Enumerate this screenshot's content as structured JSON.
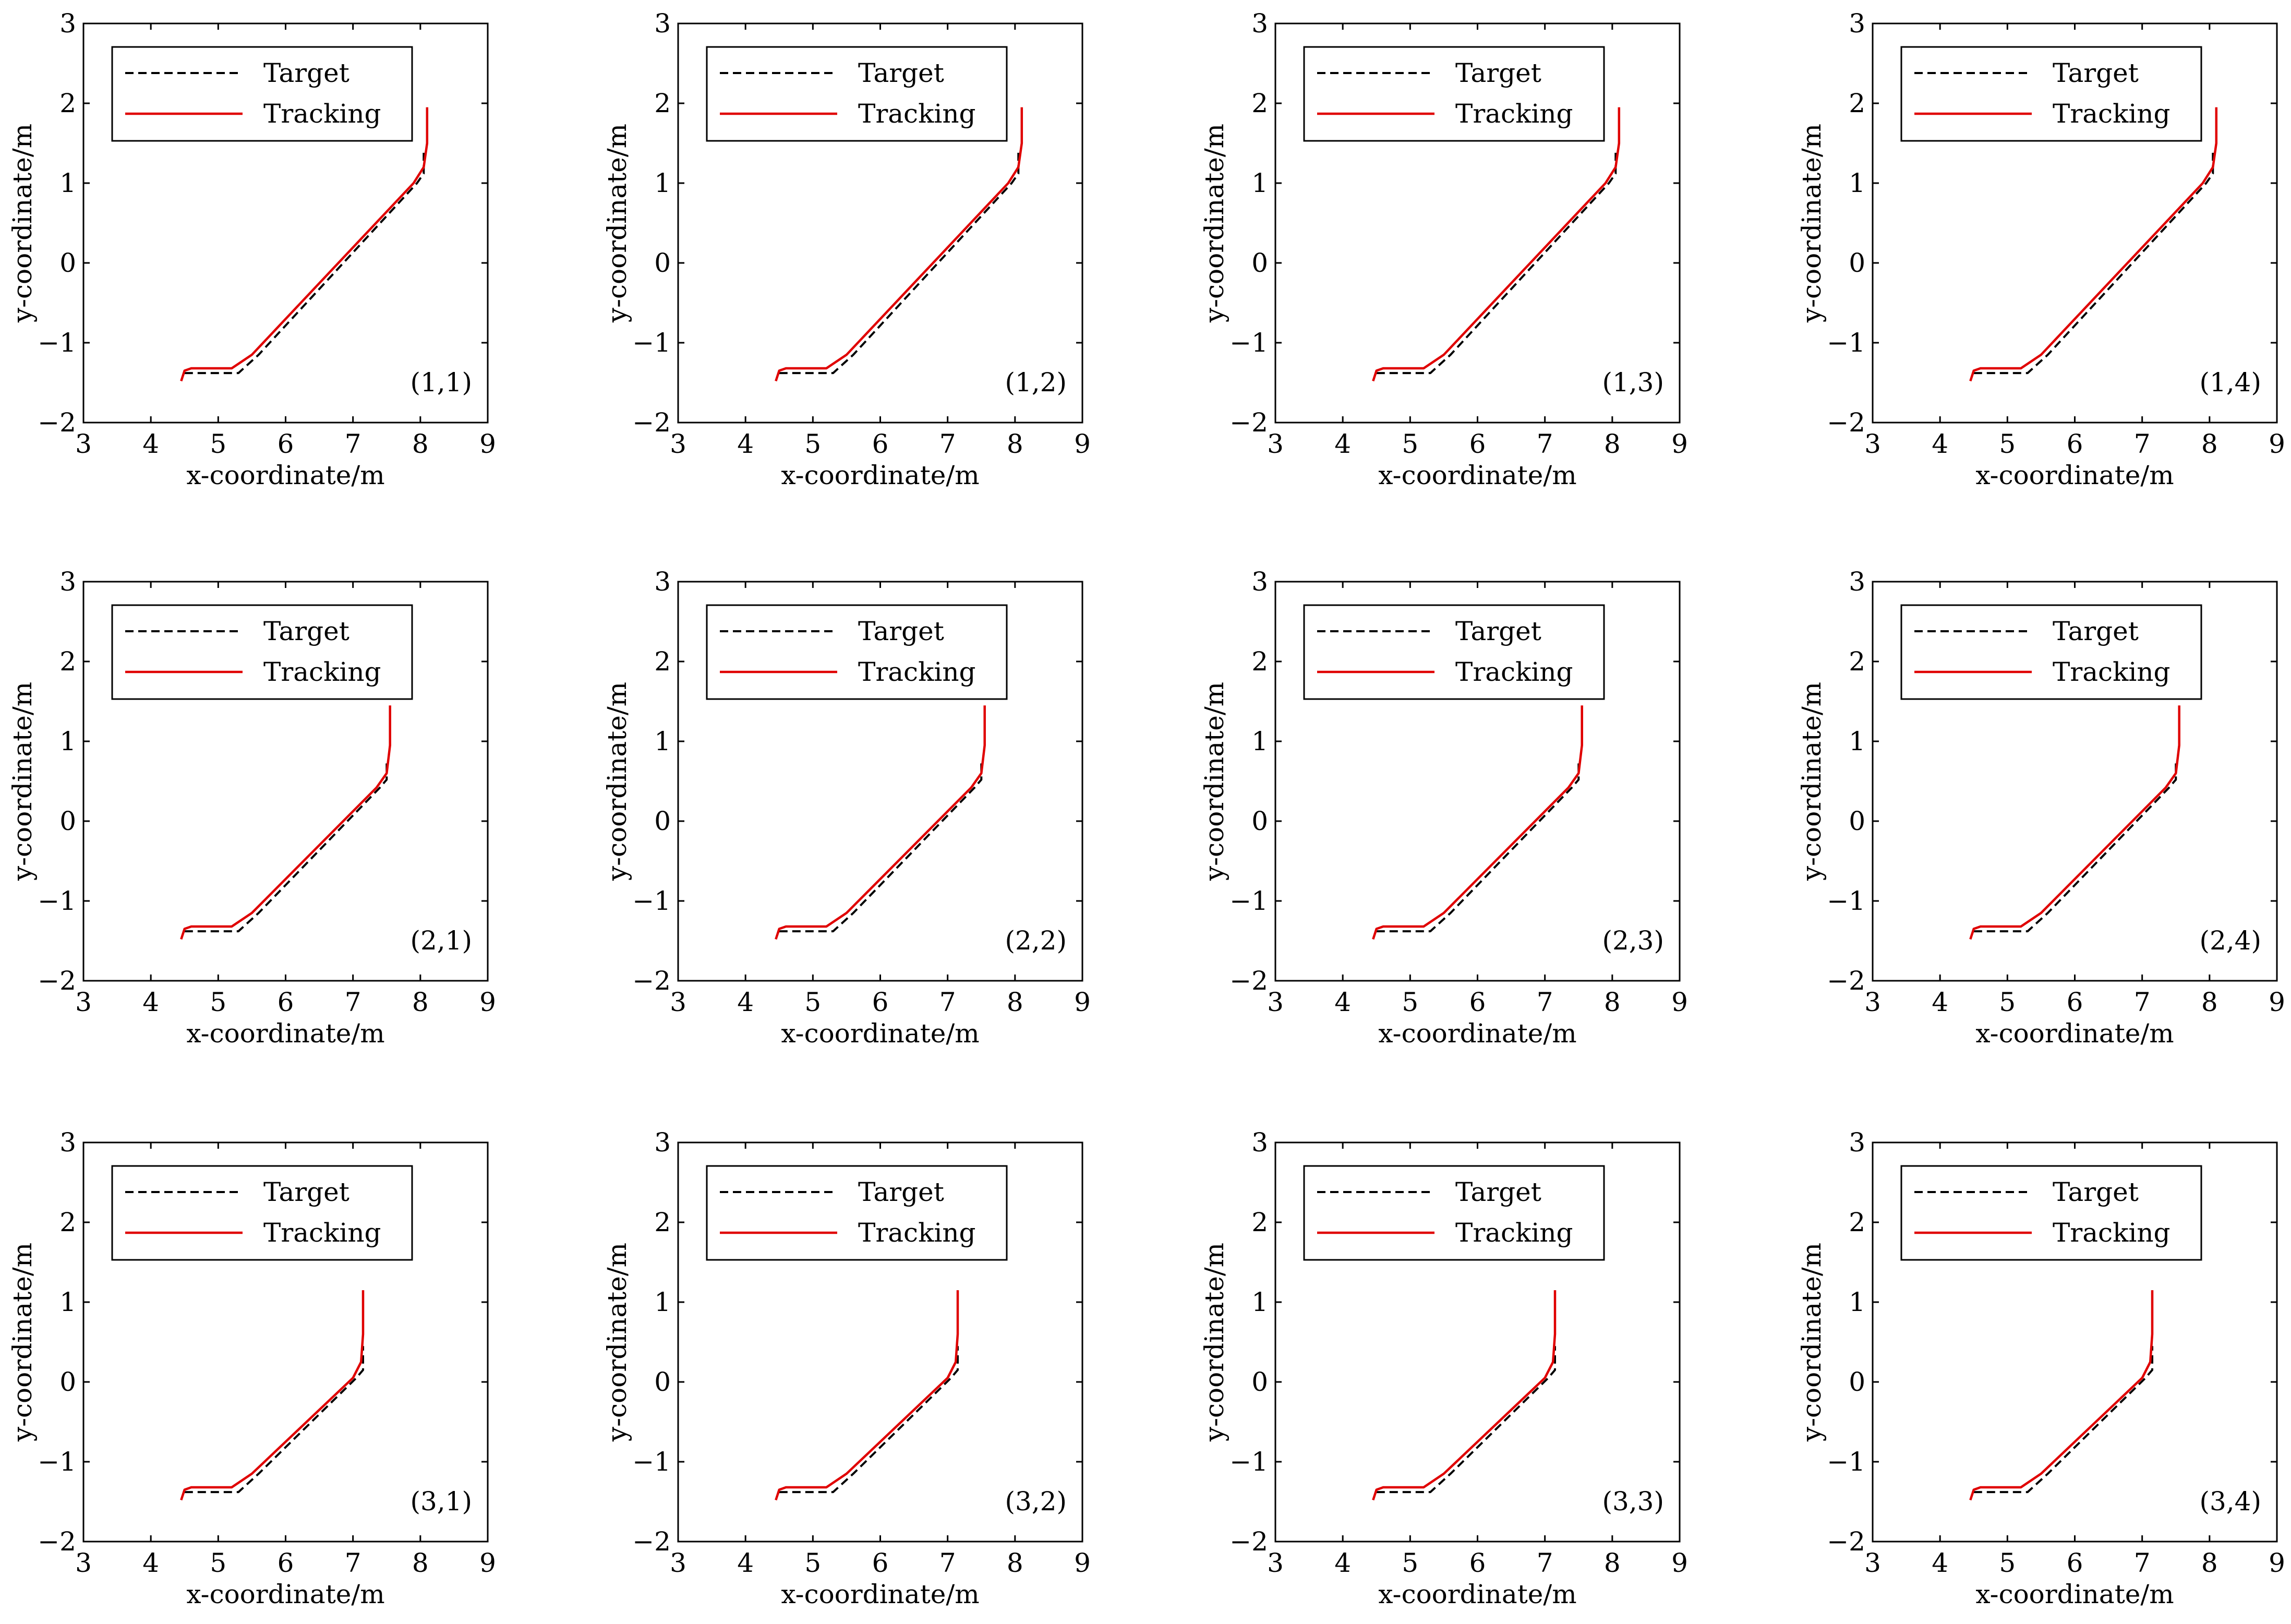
{
  "colors": {
    "target": "#000000",
    "tracking": "#e00000",
    "axes": "#000000",
    "background": "#ffffff"
  },
  "legend": {
    "target_label": "Target",
    "tracking_label": "Tracking"
  },
  "chart_data": [
    {
      "type": "line",
      "panel_label": "(1,1)",
      "xlabel": "x-coordinate/m",
      "ylabel": "y-coordinate/m",
      "xlim": [
        3,
        9
      ],
      "ylim": [
        -2,
        3
      ],
      "xticks": [
        3,
        4,
        5,
        6,
        7,
        8,
        9
      ],
      "yticks": [
        -2,
        -1,
        0,
        1,
        2,
        3
      ],
      "grid": false,
      "legend_position": "top-left",
      "series": [
        {
          "name": "Target",
          "style": "dashed",
          "x": [
            4.5,
            5.3,
            5.6,
            7.95,
            8.05,
            8.05
          ],
          "y": [
            -1.38,
            -1.38,
            -1.15,
            1.0,
            1.12,
            1.38
          ]
        },
        {
          "name": "Tracking",
          "style": "solid",
          "x": [
            4.45,
            4.5,
            4.6,
            5.2,
            5.5,
            7.9,
            8.05,
            8.1,
            8.1
          ],
          "y": [
            -1.48,
            -1.35,
            -1.32,
            -1.32,
            -1.15,
            1.0,
            1.2,
            1.5,
            1.95
          ]
        }
      ]
    },
    {
      "type": "line",
      "panel_label": "(1,2)",
      "xlabel": "x-coordinate/m",
      "ylabel": "y-coordinate/m",
      "xlim": [
        3,
        9
      ],
      "ylim": [
        -2,
        3
      ],
      "xticks": [
        3,
        4,
        5,
        6,
        7,
        8,
        9
      ],
      "yticks": [
        -2,
        -1,
        0,
        1,
        2,
        3
      ],
      "grid": false,
      "legend_position": "top-left",
      "series": [
        {
          "name": "Target",
          "style": "dashed",
          "x": [
            4.5,
            5.3,
            5.6,
            7.95,
            8.05,
            8.05
          ],
          "y": [
            -1.38,
            -1.38,
            -1.15,
            1.0,
            1.12,
            1.38
          ]
        },
        {
          "name": "Tracking",
          "style": "solid",
          "x": [
            4.45,
            4.5,
            4.6,
            5.2,
            5.5,
            7.9,
            8.05,
            8.1,
            8.1
          ],
          "y": [
            -1.48,
            -1.35,
            -1.32,
            -1.32,
            -1.15,
            1.0,
            1.2,
            1.5,
            1.95
          ]
        }
      ]
    },
    {
      "type": "line",
      "panel_label": "(1,3)",
      "xlabel": "x-coordinate/m",
      "ylabel": "y-coordinate/m",
      "xlim": [
        3,
        9
      ],
      "ylim": [
        -2,
        3
      ],
      "xticks": [
        3,
        4,
        5,
        6,
        7,
        8,
        9
      ],
      "yticks": [
        -2,
        -1,
        0,
        1,
        2,
        3
      ],
      "grid": false,
      "legend_position": "top-left",
      "series": [
        {
          "name": "Target",
          "style": "dashed",
          "x": [
            4.5,
            5.3,
            5.6,
            7.95,
            8.05,
            8.05
          ],
          "y": [
            -1.38,
            -1.38,
            -1.15,
            1.0,
            1.12,
            1.38
          ]
        },
        {
          "name": "Tracking",
          "style": "solid",
          "x": [
            4.45,
            4.5,
            4.6,
            5.2,
            5.5,
            7.9,
            8.05,
            8.1,
            8.1
          ],
          "y": [
            -1.48,
            -1.35,
            -1.32,
            -1.32,
            -1.15,
            1.0,
            1.2,
            1.5,
            1.95
          ]
        }
      ]
    },
    {
      "type": "line",
      "panel_label": "(1,4)",
      "xlabel": "x-coordinate/m",
      "ylabel": "y-coordinate/m",
      "xlim": [
        3,
        9
      ],
      "ylim": [
        -2,
        3
      ],
      "xticks": [
        3,
        4,
        5,
        6,
        7,
        8,
        9
      ],
      "yticks": [
        -2,
        -1,
        0,
        1,
        2,
        3
      ],
      "grid": false,
      "legend_position": "top-left",
      "series": [
        {
          "name": "Target",
          "style": "dashed",
          "x": [
            4.5,
            5.3,
            5.6,
            7.95,
            8.05,
            8.05
          ],
          "y": [
            -1.38,
            -1.38,
            -1.15,
            1.0,
            1.12,
            1.38
          ]
        },
        {
          "name": "Tracking",
          "style": "solid",
          "x": [
            4.45,
            4.5,
            4.6,
            5.2,
            5.5,
            7.9,
            8.05,
            8.1,
            8.1
          ],
          "y": [
            -1.48,
            -1.35,
            -1.32,
            -1.32,
            -1.15,
            1.0,
            1.2,
            1.5,
            1.95
          ]
        }
      ]
    },
    {
      "type": "line",
      "panel_label": "(2,1)",
      "xlabel": "x-coordinate/m",
      "ylabel": "y-coordinate/m",
      "xlim": [
        3,
        9
      ],
      "ylim": [
        -2,
        3
      ],
      "xticks": [
        3,
        4,
        5,
        6,
        7,
        8,
        9
      ],
      "yticks": [
        -2,
        -1,
        0,
        1,
        2,
        3
      ],
      "grid": false,
      "legend_position": "top-left",
      "series": [
        {
          "name": "Target",
          "style": "dashed",
          "x": [
            4.5,
            5.3,
            5.6,
            7.4,
            7.5,
            7.5
          ],
          "y": [
            -1.38,
            -1.38,
            -1.15,
            0.42,
            0.52,
            0.78
          ]
        },
        {
          "name": "Tracking",
          "style": "solid",
          "x": [
            4.45,
            4.5,
            4.6,
            5.2,
            5.5,
            7.35,
            7.5,
            7.55,
            7.55
          ],
          "y": [
            -1.48,
            -1.35,
            -1.32,
            -1.32,
            -1.15,
            0.42,
            0.6,
            0.95,
            1.45
          ]
        }
      ]
    },
    {
      "type": "line",
      "panel_label": "(2,2)",
      "xlabel": "x-coordinate/m",
      "ylabel": "y-coordinate/m",
      "xlim": [
        3,
        9
      ],
      "ylim": [
        -2,
        3
      ],
      "xticks": [
        3,
        4,
        5,
        6,
        7,
        8,
        9
      ],
      "yticks": [
        -2,
        -1,
        0,
        1,
        2,
        3
      ],
      "grid": false,
      "legend_position": "top-left",
      "series": [
        {
          "name": "Target",
          "style": "dashed",
          "x": [
            4.5,
            5.3,
            5.6,
            7.4,
            7.5,
            7.5
          ],
          "y": [
            -1.38,
            -1.38,
            -1.15,
            0.42,
            0.52,
            0.78
          ]
        },
        {
          "name": "Tracking",
          "style": "solid",
          "x": [
            4.45,
            4.5,
            4.6,
            5.2,
            5.5,
            7.35,
            7.5,
            7.55,
            7.55
          ],
          "y": [
            -1.48,
            -1.35,
            -1.32,
            -1.32,
            -1.15,
            0.42,
            0.6,
            0.95,
            1.45
          ]
        }
      ]
    },
    {
      "type": "line",
      "panel_label": "(2,3)",
      "xlabel": "x-coordinate/m",
      "ylabel": "y-coordinate/m",
      "xlim": [
        3,
        9
      ],
      "ylim": [
        -2,
        3
      ],
      "xticks": [
        3,
        4,
        5,
        6,
        7,
        8,
        9
      ],
      "yticks": [
        -2,
        -1,
        0,
        1,
        2,
        3
      ],
      "grid": false,
      "legend_position": "top-left",
      "series": [
        {
          "name": "Target",
          "style": "dashed",
          "x": [
            4.5,
            5.3,
            5.6,
            7.4,
            7.5,
            7.5
          ],
          "y": [
            -1.38,
            -1.38,
            -1.15,
            0.42,
            0.52,
            0.78
          ]
        },
        {
          "name": "Tracking",
          "style": "solid",
          "x": [
            4.45,
            4.5,
            4.6,
            5.2,
            5.5,
            7.35,
            7.5,
            7.55,
            7.55
          ],
          "y": [
            -1.48,
            -1.35,
            -1.32,
            -1.32,
            -1.15,
            0.42,
            0.6,
            0.95,
            1.45
          ]
        }
      ]
    },
    {
      "type": "line",
      "panel_label": "(2,4)",
      "xlabel": "x-coordinate/m",
      "ylabel": "y-coordinate/m",
      "xlim": [
        3,
        9
      ],
      "ylim": [
        -2,
        3
      ],
      "xticks": [
        3,
        4,
        5,
        6,
        7,
        8,
        9
      ],
      "yticks": [
        -2,
        -1,
        0,
        1,
        2,
        3
      ],
      "grid": false,
      "legend_position": "top-left",
      "series": [
        {
          "name": "Target",
          "style": "dashed",
          "x": [
            4.5,
            5.3,
            5.6,
            7.4,
            7.5,
            7.5
          ],
          "y": [
            -1.38,
            -1.38,
            -1.15,
            0.42,
            0.52,
            0.78
          ]
        },
        {
          "name": "Tracking",
          "style": "solid",
          "x": [
            4.45,
            4.5,
            4.6,
            5.2,
            5.5,
            7.35,
            7.5,
            7.55,
            7.55
          ],
          "y": [
            -1.48,
            -1.35,
            -1.32,
            -1.32,
            -1.15,
            0.42,
            0.6,
            0.95,
            1.45
          ]
        }
      ]
    },
    {
      "type": "line",
      "panel_label": "(3,1)",
      "xlabel": "x-coordinate/m",
      "ylabel": "y-coordinate/m",
      "xlim": [
        3,
        9
      ],
      "ylim": [
        -2,
        3
      ],
      "xticks": [
        3,
        4,
        5,
        6,
        7,
        8,
        9
      ],
      "yticks": [
        -2,
        -1,
        0,
        1,
        2,
        3
      ],
      "grid": false,
      "legend_position": "top-left",
      "series": [
        {
          "name": "Target",
          "style": "dashed",
          "x": [
            4.5,
            5.3,
            5.6,
            7.05,
            7.15,
            7.15
          ],
          "y": [
            -1.38,
            -1.38,
            -1.15,
            0.05,
            0.15,
            0.45
          ]
        },
        {
          "name": "Tracking",
          "style": "solid",
          "x": [
            4.45,
            4.5,
            4.6,
            5.2,
            5.5,
            7.0,
            7.12,
            7.15,
            7.15
          ],
          "y": [
            -1.48,
            -1.35,
            -1.32,
            -1.32,
            -1.15,
            0.05,
            0.25,
            0.6,
            1.15
          ]
        }
      ]
    },
    {
      "type": "line",
      "panel_label": "(3,2)",
      "xlabel": "x-coordinate/m",
      "ylabel": "y-coordinate/m",
      "xlim": [
        3,
        9
      ],
      "ylim": [
        -2,
        3
      ],
      "xticks": [
        3,
        4,
        5,
        6,
        7,
        8,
        9
      ],
      "yticks": [
        -2,
        -1,
        0,
        1,
        2,
        3
      ],
      "grid": false,
      "legend_position": "top-left",
      "series": [
        {
          "name": "Target",
          "style": "dashed",
          "x": [
            4.5,
            5.3,
            5.6,
            7.05,
            7.15,
            7.15
          ],
          "y": [
            -1.38,
            -1.38,
            -1.15,
            0.05,
            0.15,
            0.45
          ]
        },
        {
          "name": "Tracking",
          "style": "solid",
          "x": [
            4.45,
            4.5,
            4.6,
            5.2,
            5.5,
            7.0,
            7.12,
            7.15,
            7.15
          ],
          "y": [
            -1.48,
            -1.35,
            -1.32,
            -1.32,
            -1.15,
            0.05,
            0.25,
            0.6,
            1.15
          ]
        }
      ]
    },
    {
      "type": "line",
      "panel_label": "(3,3)",
      "xlabel": "x-coordinate/m",
      "ylabel": "y-coordinate/m",
      "xlim": [
        3,
        9
      ],
      "ylim": [
        -2,
        3
      ],
      "xticks": [
        3,
        4,
        5,
        6,
        7,
        8,
        9
      ],
      "yticks": [
        -2,
        -1,
        0,
        1,
        2,
        3
      ],
      "grid": false,
      "legend_position": "top-left",
      "series": [
        {
          "name": "Target",
          "style": "dashed",
          "x": [
            4.5,
            5.3,
            5.6,
            7.05,
            7.15,
            7.15
          ],
          "y": [
            -1.38,
            -1.38,
            -1.15,
            0.05,
            0.15,
            0.45
          ]
        },
        {
          "name": "Tracking",
          "style": "solid",
          "x": [
            4.45,
            4.5,
            4.6,
            5.2,
            5.5,
            7.0,
            7.12,
            7.15,
            7.15
          ],
          "y": [
            -1.48,
            -1.35,
            -1.32,
            -1.32,
            -1.15,
            0.05,
            0.25,
            0.6,
            1.15
          ]
        }
      ]
    },
    {
      "type": "line",
      "panel_label": "(3,4)",
      "xlabel": "x-coordinate/m",
      "ylabel": "y-coordinate/m",
      "xlim": [
        3,
        9
      ],
      "ylim": [
        -2,
        3
      ],
      "xticks": [
        3,
        4,
        5,
        6,
        7,
        8,
        9
      ],
      "yticks": [
        -2,
        -1,
        0,
        1,
        2,
        3
      ],
      "grid": false,
      "legend_position": "top-left",
      "series": [
        {
          "name": "Target",
          "style": "dashed",
          "x": [
            4.5,
            5.3,
            5.6,
            7.05,
            7.15,
            7.15
          ],
          "y": [
            -1.38,
            -1.38,
            -1.15,
            0.05,
            0.15,
            0.45
          ]
        },
        {
          "name": "Tracking",
          "style": "solid",
          "x": [
            4.45,
            4.5,
            4.6,
            5.2,
            5.5,
            7.0,
            7.12,
            7.15,
            7.15
          ],
          "y": [
            -1.48,
            -1.35,
            -1.32,
            -1.32,
            -1.15,
            0.05,
            0.25,
            0.6,
            1.15
          ]
        }
      ]
    }
  ]
}
